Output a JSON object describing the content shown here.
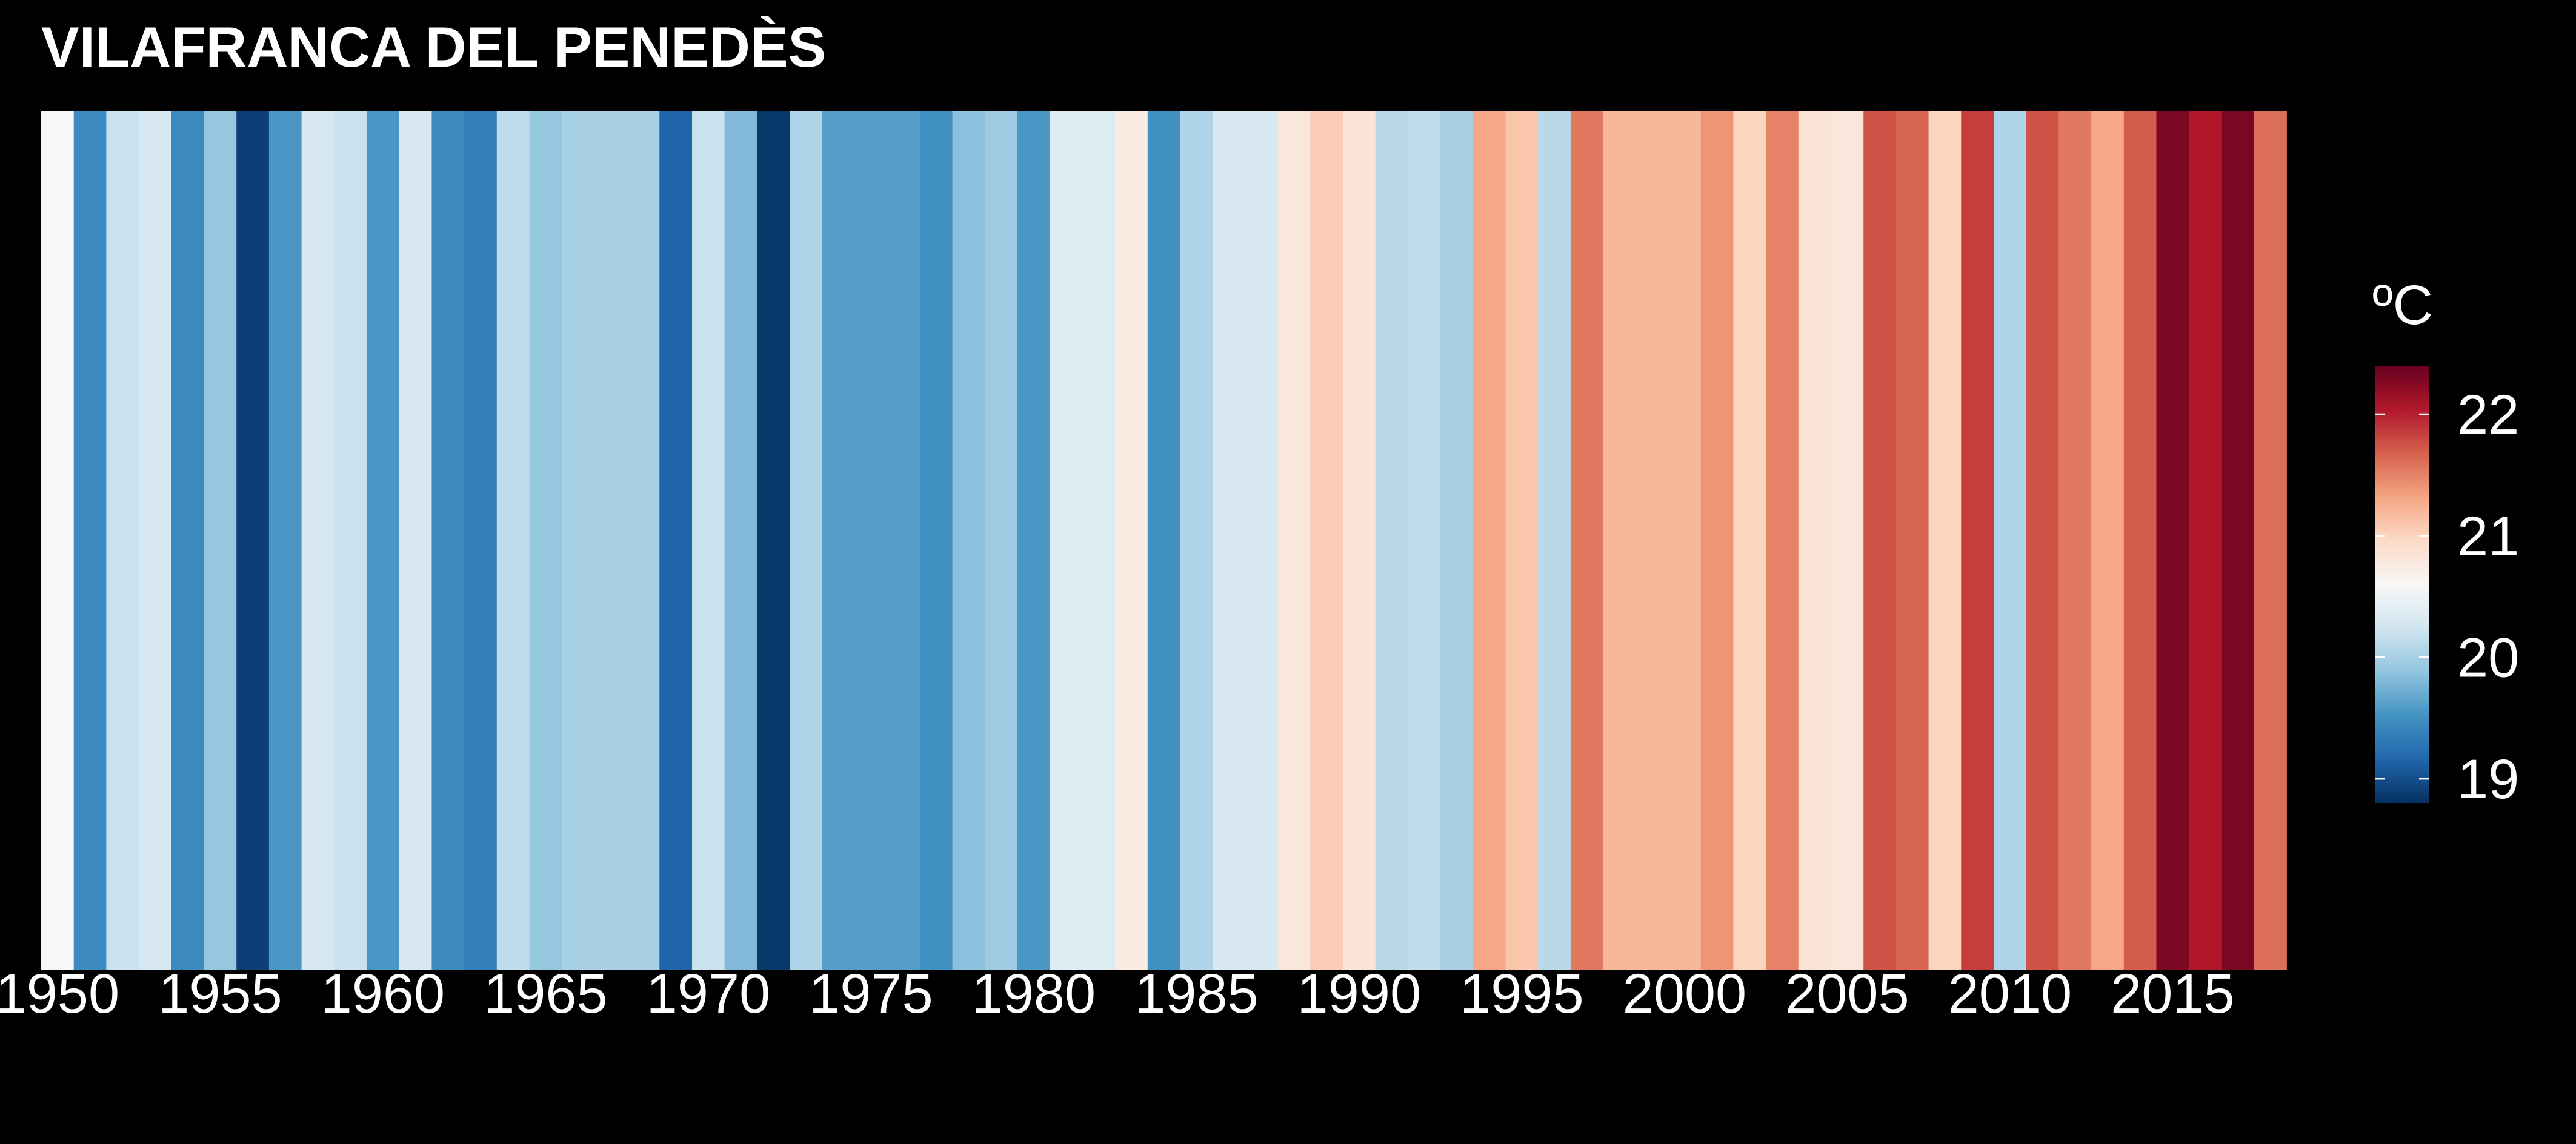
{
  "chart_data": {
    "type": "heatmap",
    "title": "VILAFRANCA DEL PENEDÈS",
    "xlabel": "",
    "ylabel": "",
    "x": [
      1950,
      1951,
      1952,
      1953,
      1954,
      1955,
      1956,
      1957,
      1958,
      1959,
      1960,
      1961,
      1962,
      1963,
      1964,
      1965,
      1966,
      1967,
      1968,
      1969,
      1970,
      1971,
      1972,
      1973,
      1974,
      1975,
      1976,
      1977,
      1978,
      1979,
      1980,
      1981,
      1982,
      1983,
      1984,
      1985,
      1986,
      1987,
      1988,
      1989,
      1990,
      1991,
      1992,
      1993,
      1994,
      1995,
      1996,
      1997,
      1998,
      1999,
      2000,
      2001,
      2002,
      2003,
      2004,
      2005,
      2006,
      2007,
      2008,
      2009,
      2010,
      2011,
      2012,
      2013,
      2014,
      2015,
      2016,
      2017,
      2018
    ],
    "values": [
      20.6,
      19.45,
      20.2,
      20.3,
      19.45,
      19.9,
      18.9,
      19.55,
      20.3,
      20.2,
      19.55,
      20.3,
      19.45,
      19.35,
      20.15,
      19.9,
      20.0,
      20.0,
      20.0,
      19.15,
      20.2,
      19.8,
      18.85,
      20.05,
      19.6,
      19.6,
      19.6,
      19.5,
      19.85,
      19.95,
      19.55,
      20.35,
      20.35,
      20.75,
      19.5,
      20.05,
      20.3,
      20.3,
      20.8,
      21.05,
      20.85,
      20.1,
      20.15,
      20.0,
      21.3,
      21.1,
      20.1,
      21.55,
      21.2,
      21.2,
      21.2,
      21.4,
      21.0,
      21.5,
      20.85,
      20.8,
      21.75,
      21.65,
      21.0,
      21.85,
      20.05,
      21.75,
      21.55,
      21.3,
      21.7,
      22.3,
      22.05,
      22.3,
      21.6
    ],
    "x_ticks": [
      "1950",
      "1955",
      "1960",
      "1965",
      "1970",
      "1975",
      "1980",
      "1985",
      "1990",
      "1995",
      "2000",
      "2005",
      "2010",
      "2015"
    ],
    "legend": {
      "title": "ºC",
      "ticks": [
        "19",
        "20",
        "21",
        "22"
      ],
      "range": [
        18.8,
        22.4
      ],
      "placement": "right"
    },
    "colormap": [
      "#053061",
      "#2166ac",
      "#4393c3",
      "#92c5de",
      "#d1e5f0",
      "#f7f7f7",
      "#fddbc7",
      "#f4a582",
      "#d6604d",
      "#b2182b",
      "#67001f"
    ],
    "grid": false
  }
}
